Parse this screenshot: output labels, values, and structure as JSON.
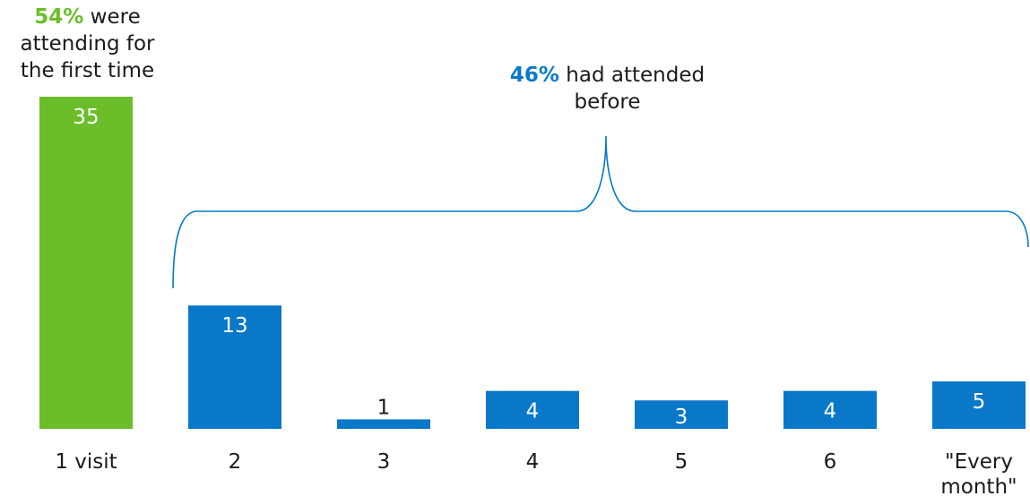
{
  "colors": {
    "first_visit": "#6cbd2a",
    "repeat": "#0a78c8",
    "text": "#1a1a1a"
  },
  "annotations": {
    "first_time": {
      "percent": "54%",
      "text": "were attending for the first time"
    },
    "attended_before": {
      "percent": "46%",
      "text": "had attended before"
    }
  },
  "chart_data": {
    "type": "bar",
    "categories": [
      "1 visit",
      "2",
      "3",
      "4",
      "5",
      "6",
      "\"Every month\""
    ],
    "values": [
      35,
      13,
      1,
      4,
      3,
      4,
      5
    ],
    "data_labels": [
      "35",
      "13",
      "1",
      "4",
      "3",
      "4",
      "5"
    ],
    "bar_colors": [
      "#6cbd2a",
      "#0a78c8",
      "#0a78c8",
      "#0a78c8",
      "#0a78c8",
      "#0a78c8",
      "#0a78c8"
    ],
    "title": "",
    "xlabel": "",
    "ylabel": "",
    "ylim": [
      0,
      35
    ],
    "grid": false,
    "legend": "none"
  }
}
